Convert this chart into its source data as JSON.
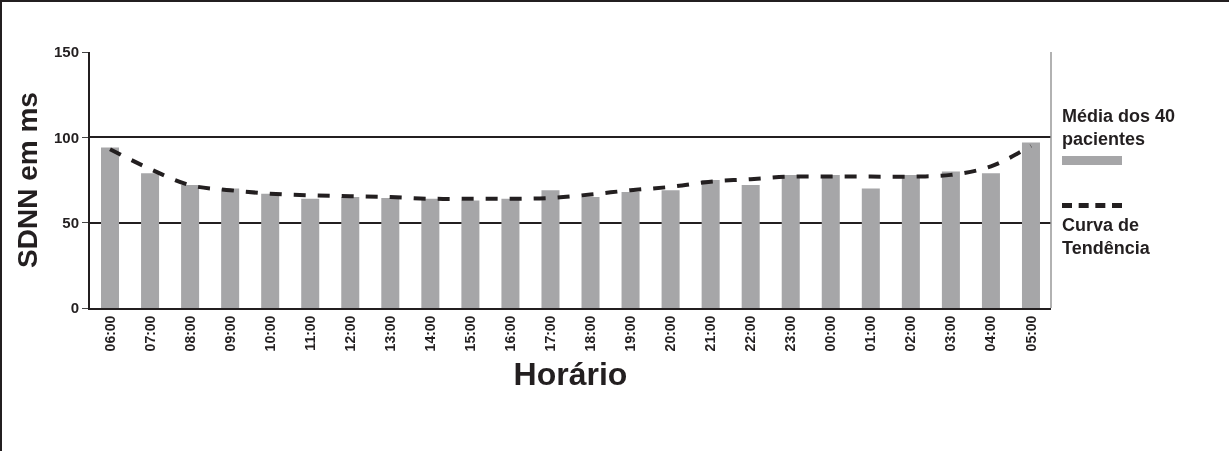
{
  "chart_data": {
    "type": "bar",
    "xlabel": "Horário",
    "ylabel": "SDNN em ms",
    "categories": [
      "06:00",
      "07:00",
      "08:00",
      "09:00",
      "10:00",
      "11:00",
      "12:00",
      "13:00",
      "14:00",
      "15:00",
      "16:00",
      "17:00",
      "18:00",
      "19:00",
      "20:00",
      "21:00",
      "22:00",
      "23:00",
      "00:00",
      "01:00",
      "02:00",
      "03:00",
      "04:00",
      "05:00"
    ],
    "series": [
      {
        "name": "Média dos 40 pacientes",
        "color": "#a6a6a8",
        "values": [
          94,
          79,
          72,
          70,
          67,
          64,
          65,
          64.5,
          64,
          63,
          64,
          69,
          65,
          68,
          69,
          75,
          72,
          78,
          78,
          70,
          78,
          80,
          79,
          97
        ]
      },
      {
        "name": "Curva de Tendência",
        "type": "line",
        "color": "#231f20",
        "line_style": "dashed",
        "values": [
          93,
          81.5,
          72,
          69,
          67,
          66,
          65.5,
          65,
          64,
          64,
          64,
          64.5,
          66.5,
          69,
          71,
          74,
          75.5,
          77,
          77,
          77,
          77,
          78,
          83,
          95
        ]
      }
    ],
    "ylim": [
      0,
      150
    ],
    "yticks": [
      0,
      50,
      100,
      150
    ],
    "grid": "y",
    "legend": "right"
  }
}
